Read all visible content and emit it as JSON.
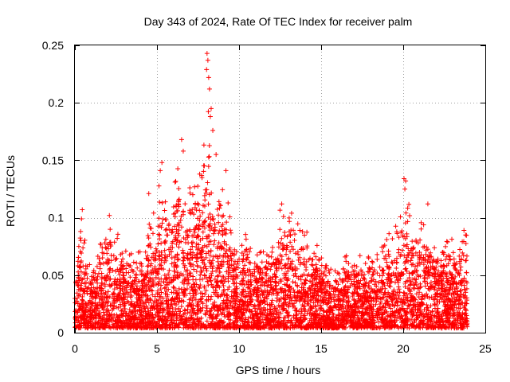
{
  "chart_data": {
    "type": "scatter",
    "title": "Day 343 of 2024, Rate Of TEC Index for receiver palm",
    "xlabel": "GPS time / hours",
    "ylabel": "ROTI / TECUs",
    "xlim": [
      0,
      25
    ],
    "ylim": [
      0,
      0.25
    ],
    "xticks": [
      0,
      5,
      10,
      15,
      20,
      25
    ],
    "xtick_labels": [
      "0",
      "5",
      "10",
      "15",
      "20",
      "25"
    ],
    "yticks": [
      0,
      0.05,
      0.1,
      0.15,
      0.2,
      0.25
    ],
    "ytick_labels": [
      "0",
      "0.05",
      "0.1",
      "0.15",
      "0.2",
      "0.25"
    ],
    "grid": true,
    "marker": "+",
    "color": "#ff0000",
    "series": [
      {
        "name": "ROTI",
        "envelope": {
          "x": [
            0,
            0.4,
            1.0,
            1.7,
            2.3,
            3.0,
            3.7,
            4.3,
            4.8,
            5.2,
            5.7,
            6.3,
            6.7,
            7.2,
            7.7,
            8.0,
            8.3,
            8.7,
            9.0,
            9.4,
            10.0,
            10.5,
            11.0,
            12.0,
            12.6,
            13.3,
            14.0,
            14.7,
            15.3,
            16.0,
            16.6,
            17.3,
            18.0,
            18.6,
            19.3,
            20.0,
            20.2,
            20.6,
            21.3,
            22.0,
            22.6,
            23.3,
            23.9
          ],
          "y_max": [
            0.05,
            0.1,
            0.05,
            0.09,
            0.1,
            0.08,
            0.065,
            0.08,
            0.115,
            0.14,
            0.1,
            0.155,
            0.12,
            0.14,
            0.13,
            0.24,
            0.14,
            0.13,
            0.14,
            0.11,
            0.07,
            0.095,
            0.075,
            0.08,
            0.11,
            0.1,
            0.09,
            0.08,
            0.06,
            0.05,
            0.075,
            0.065,
            0.065,
            0.08,
            0.085,
            0.11,
            0.133,
            0.085,
            0.11,
            0.08,
            0.08,
            0.085,
            0.09
          ]
        },
        "highlights": [
          {
            "x": 8.05,
            "y": 0.243
          },
          {
            "x": 8.1,
            "y": 0.237
          },
          {
            "x": 8.02,
            "y": 0.229
          },
          {
            "x": 8.15,
            "y": 0.222
          },
          {
            "x": 8.2,
            "y": 0.212
          },
          {
            "x": 8.3,
            "y": 0.195
          },
          {
            "x": 8.25,
            "y": 0.188
          },
          {
            "x": 8.4,
            "y": 0.176
          },
          {
            "x": 6.5,
            "y": 0.168
          },
          {
            "x": 6.6,
            "y": 0.158
          },
          {
            "x": 8.6,
            "y": 0.155
          },
          {
            "x": 5.3,
            "y": 0.148
          },
          {
            "x": 5.2,
            "y": 0.141
          },
          {
            "x": 9.2,
            "y": 0.141
          },
          {
            "x": 20.05,
            "y": 0.134
          },
          {
            "x": 20.15,
            "y": 0.132
          },
          {
            "x": 20.1,
            "y": 0.125
          },
          {
            "x": 7.6,
            "y": 0.138
          },
          {
            "x": 0.45,
            "y": 0.107
          },
          {
            "x": 0.4,
            "y": 0.099
          },
          {
            "x": 0.35,
            "y": 0.088
          },
          {
            "x": 2.1,
            "y": 0.102
          },
          {
            "x": 21.5,
            "y": 0.112
          },
          {
            "x": 13.2,
            "y": 0.104
          },
          {
            "x": 12.6,
            "y": 0.112
          },
          {
            "x": 4.5,
            "y": 0.121
          },
          {
            "x": 6.1,
            "y": 0.131
          },
          {
            "x": 7.0,
            "y": 0.126
          },
          {
            "x": 23.7,
            "y": 0.089
          },
          {
            "x": 23.8,
            "y": 0.085
          }
        ]
      }
    ]
  }
}
